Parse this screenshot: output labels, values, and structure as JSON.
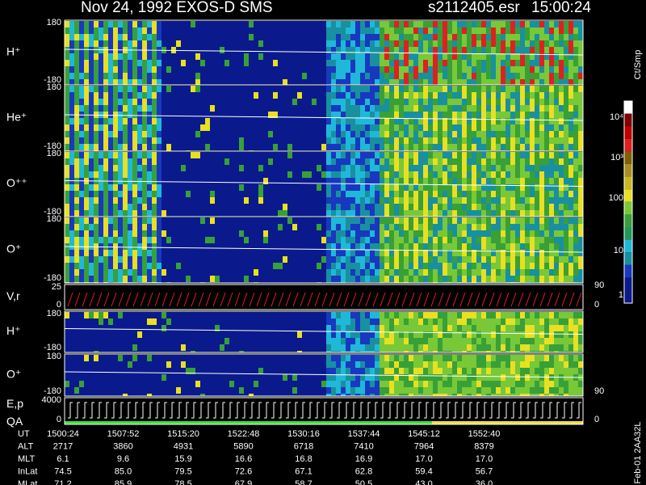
{
  "header": {
    "title": "Nov 24, 1992   EXOS-D SMS",
    "file": "s2112405.esr",
    "time": "15:00:24"
  },
  "panels": [
    {
      "label": "H⁺",
      "ticks": [
        180,
        -180
      ]
    },
    {
      "label": "He⁺",
      "ticks": [
        180,
        -180
      ]
    },
    {
      "label": "O⁺⁺",
      "ticks": [
        180,
        -180
      ]
    },
    {
      "label": "O⁺",
      "ticks": [
        180,
        -180
      ]
    },
    {
      "label": "V,r",
      "ticks": [
        25,
        0
      ],
      "right_ticks": [
        90,
        0
      ]
    },
    {
      "label": "H⁺",
      "ticks": [
        180,
        -180
      ]
    },
    {
      "label": "O⁺",
      "ticks": [
        180,
        -180
      ],
      "right_ticks": [
        90
      ]
    },
    {
      "label": "E,p",
      "label2": "QA",
      "ticks": [
        4000,
        0
      ],
      "right_ticks": [
        0
      ]
    }
  ],
  "colorbar": {
    "label": "Ct/Smp",
    "ticks": [
      "10⁴",
      "10³",
      "100",
      "10",
      "1"
    ]
  },
  "ephemeris": {
    "rows": [
      {
        "name": "UT",
        "values": [
          "1500:24",
          "1507:52",
          "1515:20",
          "1522:48",
          "1530:16",
          "1537:44",
          "1545:12",
          "1552:40"
        ]
      },
      {
        "name": "ALT",
        "values": [
          "2717",
          "3860",
          "4931",
          "5890",
          "6718",
          "7410",
          "7964",
          "8379"
        ]
      },
      {
        "name": "MLT",
        "values": [
          "6.1",
          "9.6",
          "15.9",
          "16.6",
          "16.8",
          "16.9",
          "17.0",
          "17.0"
        ]
      },
      {
        "name": "InLat",
        "values": [
          "74.5",
          "85.0",
          "79.5",
          "72.6",
          "67.1",
          "62.8",
          "59.4",
          "56.7"
        ]
      },
      {
        "name": "MLat",
        "values": [
          "71.2",
          "85.9",
          "78.5",
          "67.9",
          "58.7",
          "50.5",
          "43.0",
          "36.0"
        ]
      }
    ]
  },
  "footer": "Feb-01 2AA32L"
}
